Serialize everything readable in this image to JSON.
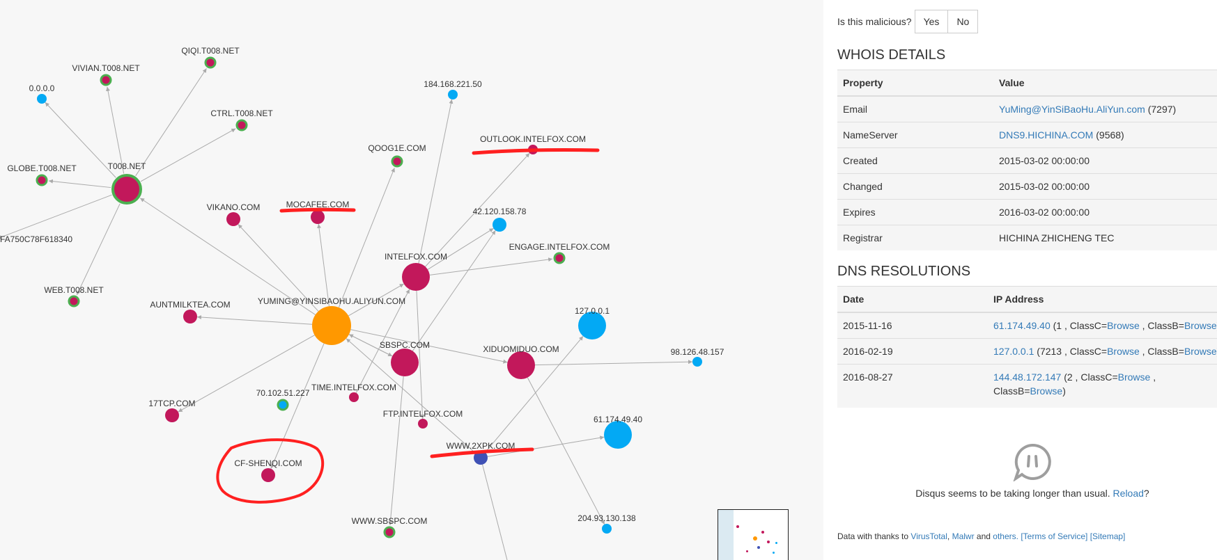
{
  "graph": {
    "nodes": [
      {
        "id": "t008",
        "label": "T008.NET",
        "color": "#c2185b",
        "ring": true,
        "size": "large"
      },
      {
        "id": "qiqi",
        "label": "QIQI.T008.NET",
        "color": "#c2185b",
        "ring": true,
        "size": "small"
      },
      {
        "id": "vivian",
        "label": "VIVIAN.T008.NET",
        "color": "#c2185b",
        "ring": true,
        "size": "small"
      },
      {
        "id": "zero",
        "label": "0.0.0.0",
        "color": "#03a9f4",
        "ring": false,
        "size": "small"
      },
      {
        "id": "ctrl",
        "label": "CTRL.T008.NET",
        "color": "#c2185b",
        "ring": true,
        "size": "small"
      },
      {
        "id": "globe",
        "label": "GLOBE.T008.NET",
        "color": "#c2185b",
        "ring": true,
        "size": "small"
      },
      {
        "id": "hash",
        "label": "FA750C78F618340",
        "color": "#c2185b",
        "ring": false,
        "size": "none"
      },
      {
        "id": "web",
        "label": "WEB.T008.NET",
        "color": "#c2185b",
        "ring": true,
        "size": "small"
      },
      {
        "id": "ip184",
        "label": "184.168.221.50",
        "color": "#03a9f4",
        "ring": false,
        "size": "small"
      },
      {
        "id": "outlook",
        "label": "OUTLOOK.INTELFOX.COM",
        "color": "#c2185b",
        "ring": false,
        "size": "small"
      },
      {
        "id": "qoog",
        "label": "QOOG1E.COM",
        "color": "#c2185b",
        "ring": true,
        "size": "small"
      },
      {
        "id": "vikano",
        "label": "VIKANO.COM",
        "color": "#c2185b",
        "ring": false,
        "size": "medium"
      },
      {
        "id": "mocafee",
        "label": "MOCAFEE.COM",
        "color": "#c2185b",
        "ring": false,
        "size": "medium"
      },
      {
        "id": "ip42",
        "label": "42.120.158.78",
        "color": "#03a9f4",
        "ring": false,
        "size": "medium"
      },
      {
        "id": "engage",
        "label": "ENGAGE.INTELFOX.COM",
        "color": "#c2185b",
        "ring": true,
        "size": "small"
      },
      {
        "id": "intelfox",
        "label": "INTELFOX.COM",
        "color": "#c2185b",
        "ring": false,
        "size": "large"
      },
      {
        "id": "auntmilk",
        "label": "AUNTMILKTEA.COM",
        "color": "#c2185b",
        "ring": false,
        "size": "medium"
      },
      {
        "id": "yuming",
        "label": "YUMING@YINSIBAOHU.ALIYUN.COM",
        "color": "#ff9800",
        "ring": false,
        "size": "xlarge"
      },
      {
        "id": "lo",
        "label": "127.0.0.1",
        "color": "#03a9f4",
        "ring": false,
        "size": "large"
      },
      {
        "id": "sbspc",
        "label": "SBSPC.COM",
        "color": "#c2185b",
        "ring": false,
        "size": "large"
      },
      {
        "id": "xiduo",
        "label": "XIDUOMIDUO.COM",
        "color": "#c2185b",
        "ring": false,
        "size": "large"
      },
      {
        "id": "ip98",
        "label": "98.126.48.157",
        "color": "#03a9f4",
        "ring": false,
        "size": "small"
      },
      {
        "id": "time",
        "label": "TIME.INTELFOX.COM",
        "color": "#c2185b",
        "ring": false,
        "size": "small"
      },
      {
        "id": "ip70",
        "label": "70.102.51.227",
        "color": "#03a9f4",
        "ring": true,
        "size": "small"
      },
      {
        "id": "t17",
        "label": "17TCP.COM",
        "color": "#c2185b",
        "ring": false,
        "size": "medium"
      },
      {
        "id": "ftp",
        "label": "FTP.INTELFOX.COM",
        "color": "#c2185b",
        "ring": false,
        "size": "small"
      },
      {
        "id": "ip61",
        "label": "61.174.49.40",
        "color": "#03a9f4",
        "ring": false,
        "size": "large"
      },
      {
        "id": "www2",
        "label": "WWW.2XPK.COM",
        "color": "#3f51b5",
        "ring": false,
        "size": "medium"
      },
      {
        "id": "cfshen",
        "label": "CF-SHENQI.COM",
        "color": "#c2185b",
        "ring": false,
        "size": "medium"
      },
      {
        "id": "wwwsb",
        "label": "WWW.SBSPC.COM",
        "color": "#c2185b",
        "ring": true,
        "size": "small"
      },
      {
        "id": "ip204",
        "label": "204.93.130.138",
        "color": "#03a9f4",
        "ring": false,
        "size": "small"
      }
    ],
    "edges": [
      [
        "t008",
        "qiqi"
      ],
      [
        "t008",
        "vivian"
      ],
      [
        "t008",
        "zero"
      ],
      [
        "t008",
        "ctrl"
      ],
      [
        "t008",
        "globe"
      ],
      [
        "t008",
        "hash"
      ],
      [
        "t008",
        "web"
      ],
      [
        "yuming",
        "t008"
      ],
      [
        "yuming",
        "vikano"
      ],
      [
        "yuming",
        "mocafee"
      ],
      [
        "yuming",
        "qoog"
      ],
      [
        "yuming",
        "intelfox"
      ],
      [
        "yuming",
        "auntmilk"
      ],
      [
        "yuming",
        "sbspc"
      ],
      [
        "yuming",
        "t17"
      ],
      [
        "yuming",
        "cfshen"
      ],
      [
        "yuming",
        "xiduo"
      ],
      [
        "intelfox",
        "ip184"
      ],
      [
        "intelfox",
        "outlook"
      ],
      [
        "intelfox",
        "ip42"
      ],
      [
        "intelfox",
        "engage"
      ],
      [
        "intelfox",
        "ftp"
      ],
      [
        "sbspc",
        "ip42"
      ],
      [
        "sbspc",
        "yuming"
      ],
      [
        "sbspc",
        "wwwsb"
      ],
      [
        "time",
        "intelfox"
      ],
      [
        "xiduo",
        "ip98"
      ],
      [
        "xiduo",
        "ip204"
      ],
      [
        "www2",
        "lo"
      ],
      [
        "www2",
        "ip61"
      ],
      [
        "www2",
        "yuming"
      ],
      [
        "www2",
        "down"
      ]
    ]
  },
  "malicious": {
    "question": "Is this malicious?",
    "yes": "Yes",
    "no": "No"
  },
  "whois": {
    "title": "WHOIS DETAILS",
    "header": {
      "property": "Property",
      "value": "Value"
    },
    "rows": [
      {
        "property": "Email",
        "link": "YuMing@YinSiBaoHu.AliYun.com",
        "extra": "(7297)"
      },
      {
        "property": "NameServer",
        "link": "DNS9.HICHINA.COM",
        "extra": "(9568)"
      },
      {
        "property": "Created",
        "value": "2015-03-02 00:00:00"
      },
      {
        "property": "Changed",
        "value": "2015-03-02 00:00:00"
      },
      {
        "property": "Expires",
        "value": "2016-03-02 00:00:00"
      },
      {
        "property": "Registrar",
        "value": "HICHINA ZHICHENG TEC"
      }
    ]
  },
  "dns": {
    "title": "DNS RESOLUTIONS",
    "header": {
      "date": "Date",
      "ip": "IP Address"
    },
    "rows": [
      {
        "date": "2015-11-16",
        "ip": "61.174.49.40",
        "count": "(1 ,",
        "classc_label": "ClassC=",
        "classc_link": "Browse",
        "sep": ",",
        "classb_label": "ClassB=",
        "classb_link": "Browse",
        "end": ")"
      },
      {
        "date": "2016-02-19",
        "ip": "127.0.0.1",
        "count": "(7213 ,",
        "classc_label": "ClassC=",
        "classc_link": "Browse",
        "sep": ",",
        "classb_label": "ClassB=",
        "classb_link": "Browse",
        "end": ")"
      },
      {
        "date": "2016-08-27",
        "ip": "144.48.172.147",
        "count": "(2 ,",
        "classc_label": "ClassC=",
        "classc_link": "Browse",
        "sep": ",",
        "classb_label": "ClassB=",
        "classb_link": "Browse",
        "end": ")"
      }
    ]
  },
  "disqus": {
    "message": "Disqus seems to be taking longer than usual.",
    "reload": "Reload",
    "after": "?"
  },
  "footer": {
    "prefix": "Data with thanks to",
    "vt": "VirusTotal",
    "comma": ",",
    "malwr": "Malwr",
    "and": "and",
    "others": "others.",
    "tos": "[Terms of Service]",
    "sitemap": "[Sitemap]"
  },
  "colors": {
    "malicious_annotation": "#ff2020",
    "edge": "#aaaaaa",
    "link": "#337ab7"
  }
}
